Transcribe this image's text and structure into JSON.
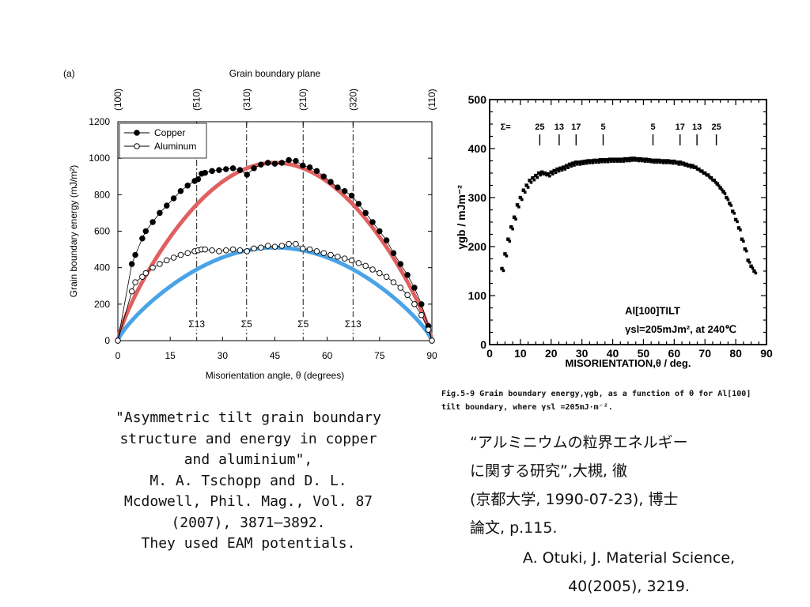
{
  "chart_data": [
    {
      "type": "line",
      "panel_label": "(a)",
      "title": "Grain boundary plane",
      "xlabel": "Misorientation angle, θ (degrees)",
      "ylabel": "Grain boundary energy (mJ/m²)",
      "xlim": [
        0,
        90
      ],
      "ylim": [
        0,
        1200
      ],
      "x_ticks": [
        0,
        15,
        30,
        45,
        60,
        75,
        90
      ],
      "y_ticks": [
        0,
        200,
        400,
        600,
        800,
        1000,
        1200
      ],
      "legend_position": "top-left",
      "top_planes": [
        {
          "x": 0,
          "label": "(100)"
        },
        {
          "x": 22.6,
          "label": "(510)"
        },
        {
          "x": 36.9,
          "label": "(310)"
        },
        {
          "x": 53.1,
          "label": "(210)"
        },
        {
          "x": 67.4,
          "label": "(320)"
        },
        {
          "x": 90,
          "label": "(110)"
        }
      ],
      "sigma_lines": [
        {
          "x": 22.6,
          "label": "Σ13"
        },
        {
          "x": 36.9,
          "label": "Σ5"
        },
        {
          "x": 53.1,
          "label": "Σ5"
        },
        {
          "x": 67.4,
          "label": "Σ13"
        }
      ],
      "series": [
        {
          "name": "Copper",
          "marker": "filled-circle",
          "color": "#000000",
          "x": [
            0,
            4,
            5,
            7,
            8,
            10,
            12,
            14,
            16,
            18,
            20,
            22,
            23,
            24,
            25,
            27,
            29,
            31,
            33,
            35,
            37,
            39,
            41,
            43,
            45,
            47,
            49,
            51,
            53,
            55,
            57,
            59,
            61,
            63,
            65,
            67,
            69,
            71,
            73,
            75,
            77,
            79,
            81,
            83,
            85,
            87,
            89,
            90
          ],
          "y": [
            0,
            420,
            470,
            560,
            600,
            650,
            700,
            740,
            780,
            820,
            850,
            875,
            885,
            915,
            920,
            930,
            935,
            940,
            945,
            935,
            910,
            945,
            965,
            975,
            970,
            975,
            990,
            985,
            960,
            950,
            930,
            900,
            870,
            840,
            820,
            795,
            750,
            700,
            650,
            600,
            550,
            480,
            420,
            360,
            290,
            200,
            80,
            0
          ]
        },
        {
          "name": "Aluminum",
          "marker": "open-circle",
          "color": "#000000",
          "x": [
            0,
            4,
            5,
            7,
            8,
            10,
            12,
            14,
            16,
            18,
            20,
            22,
            23,
            24,
            25,
            27,
            29,
            31,
            33,
            35,
            37,
            39,
            41,
            43,
            45,
            47,
            49,
            51,
            53,
            55,
            57,
            59,
            61,
            63,
            65,
            67,
            69,
            71,
            73,
            75,
            77,
            79,
            81,
            83,
            85,
            87,
            89,
            90
          ],
          "y": [
            0,
            270,
            320,
            350,
            370,
            400,
            420,
            440,
            455,
            470,
            480,
            490,
            495,
            500,
            500,
            495,
            490,
            495,
            500,
            495,
            490,
            505,
            510,
            520,
            515,
            520,
            530,
            530,
            505,
            500,
            490,
            480,
            470,
            460,
            450,
            440,
            425,
            410,
            390,
            370,
            350,
            320,
            290,
            250,
            200,
            140,
            60,
            0
          ]
        },
        {
          "name": "",
          "color": "#e06060",
          "style": "fit",
          "peak": 975
        },
        {
          "name": "",
          "color": "#4aa3e6",
          "style": "fit",
          "peak": 510
        }
      ]
    },
    {
      "type": "scatter",
      "xlabel": "MISORIENTATION,θ / deg.",
      "ylabel": "γgb / mJm⁻²",
      "xlim": [
        0,
        90
      ],
      "ylim": [
        0,
        500
      ],
      "x_ticks": [
        0,
        10,
        20,
        30,
        40,
        50,
        60,
        70,
        80,
        90
      ],
      "y_ticks": [
        0,
        100,
        200,
        300,
        400,
        500
      ],
      "annotation_1": "Al[100]TILT",
      "annotation_2": "γsl=205mJm², at 240℃",
      "sigma_prefix": "Σ=",
      "sigma_marks": [
        {
          "x": 16.3,
          "label": "25"
        },
        {
          "x": 22.6,
          "label": "13"
        },
        {
          "x": 28.1,
          "label": "17"
        },
        {
          "x": 36.9,
          "label": "5"
        },
        {
          "x": 53.1,
          "label": "5"
        },
        {
          "x": 61.9,
          "label": "17"
        },
        {
          "x": 67.4,
          "label": "13"
        },
        {
          "x": 73.7,
          "label": "25"
        }
      ],
      "x": [
        4,
        5,
        6,
        7,
        8,
        9,
        10,
        11,
        12,
        13,
        14,
        15,
        16,
        17,
        18,
        19,
        20,
        21,
        22,
        23,
        24,
        25,
        26,
        27,
        28,
        29,
        30,
        31,
        32,
        33,
        34,
        35,
        36,
        37,
        38,
        39,
        40,
        41,
        42,
        43,
        44,
        45,
        46,
        47,
        48,
        49,
        50,
        51,
        52,
        53,
        54,
        55,
        56,
        57,
        58,
        59,
        60,
        61,
        62,
        63,
        64,
        65,
        66,
        67,
        68,
        69,
        70,
        71,
        72,
        73,
        74,
        75,
        76,
        77,
        78,
        79,
        80,
        81,
        82,
        83,
        84,
        85,
        86
      ],
      "y": [
        155,
        185,
        215,
        240,
        260,
        285,
        300,
        315,
        325,
        335,
        340,
        345,
        350,
        352,
        350,
        348,
        352,
        355,
        358,
        360,
        362,
        365,
        368,
        370,
        372,
        372,
        373,
        374,
        375,
        375,
        376,
        376,
        377,
        377,
        377,
        378,
        378,
        378,
        378,
        378,
        379,
        379,
        380,
        380,
        379,
        379,
        378,
        378,
        377,
        376,
        376,
        376,
        375,
        375,
        375,
        374,
        374,
        372,
        372,
        370,
        368,
        366,
        365,
        362,
        358,
        354,
        350,
        346,
        340,
        335,
        328,
        320,
        312,
        300,
        288,
        272,
        255,
        238,
        215,
        195,
        172,
        160,
        150
      ]
    }
  ],
  "figure_caption_line1": "Fig.5-9   Grain boundary energy,γgb, as a function of θ for Al[100]",
  "figure_caption_line2": "tilt boundary, where γsl =205mJ·m⁻².",
  "left_citation": [
    "\"Asymmetric tilt grain boundary",
    "structure and energy in copper",
    "and aluminium\",",
    "M. A. Tschopp and D. L.",
    "Mcdowell, Phil. Mag., Vol. 87",
    "(2007), 3871–3892.",
    "They used EAM potentials."
  ],
  "right_citation": [
    "“アルミニウムの粒界エネルギー",
    "に関する研究”,大槻, 徹",
    "(京都大学, 1990-07-23), 博士",
    "論文, p.115."
  ],
  "reference2": [
    "A. Otuki, J. Material Science,",
    "40(2005), 3219."
  ]
}
